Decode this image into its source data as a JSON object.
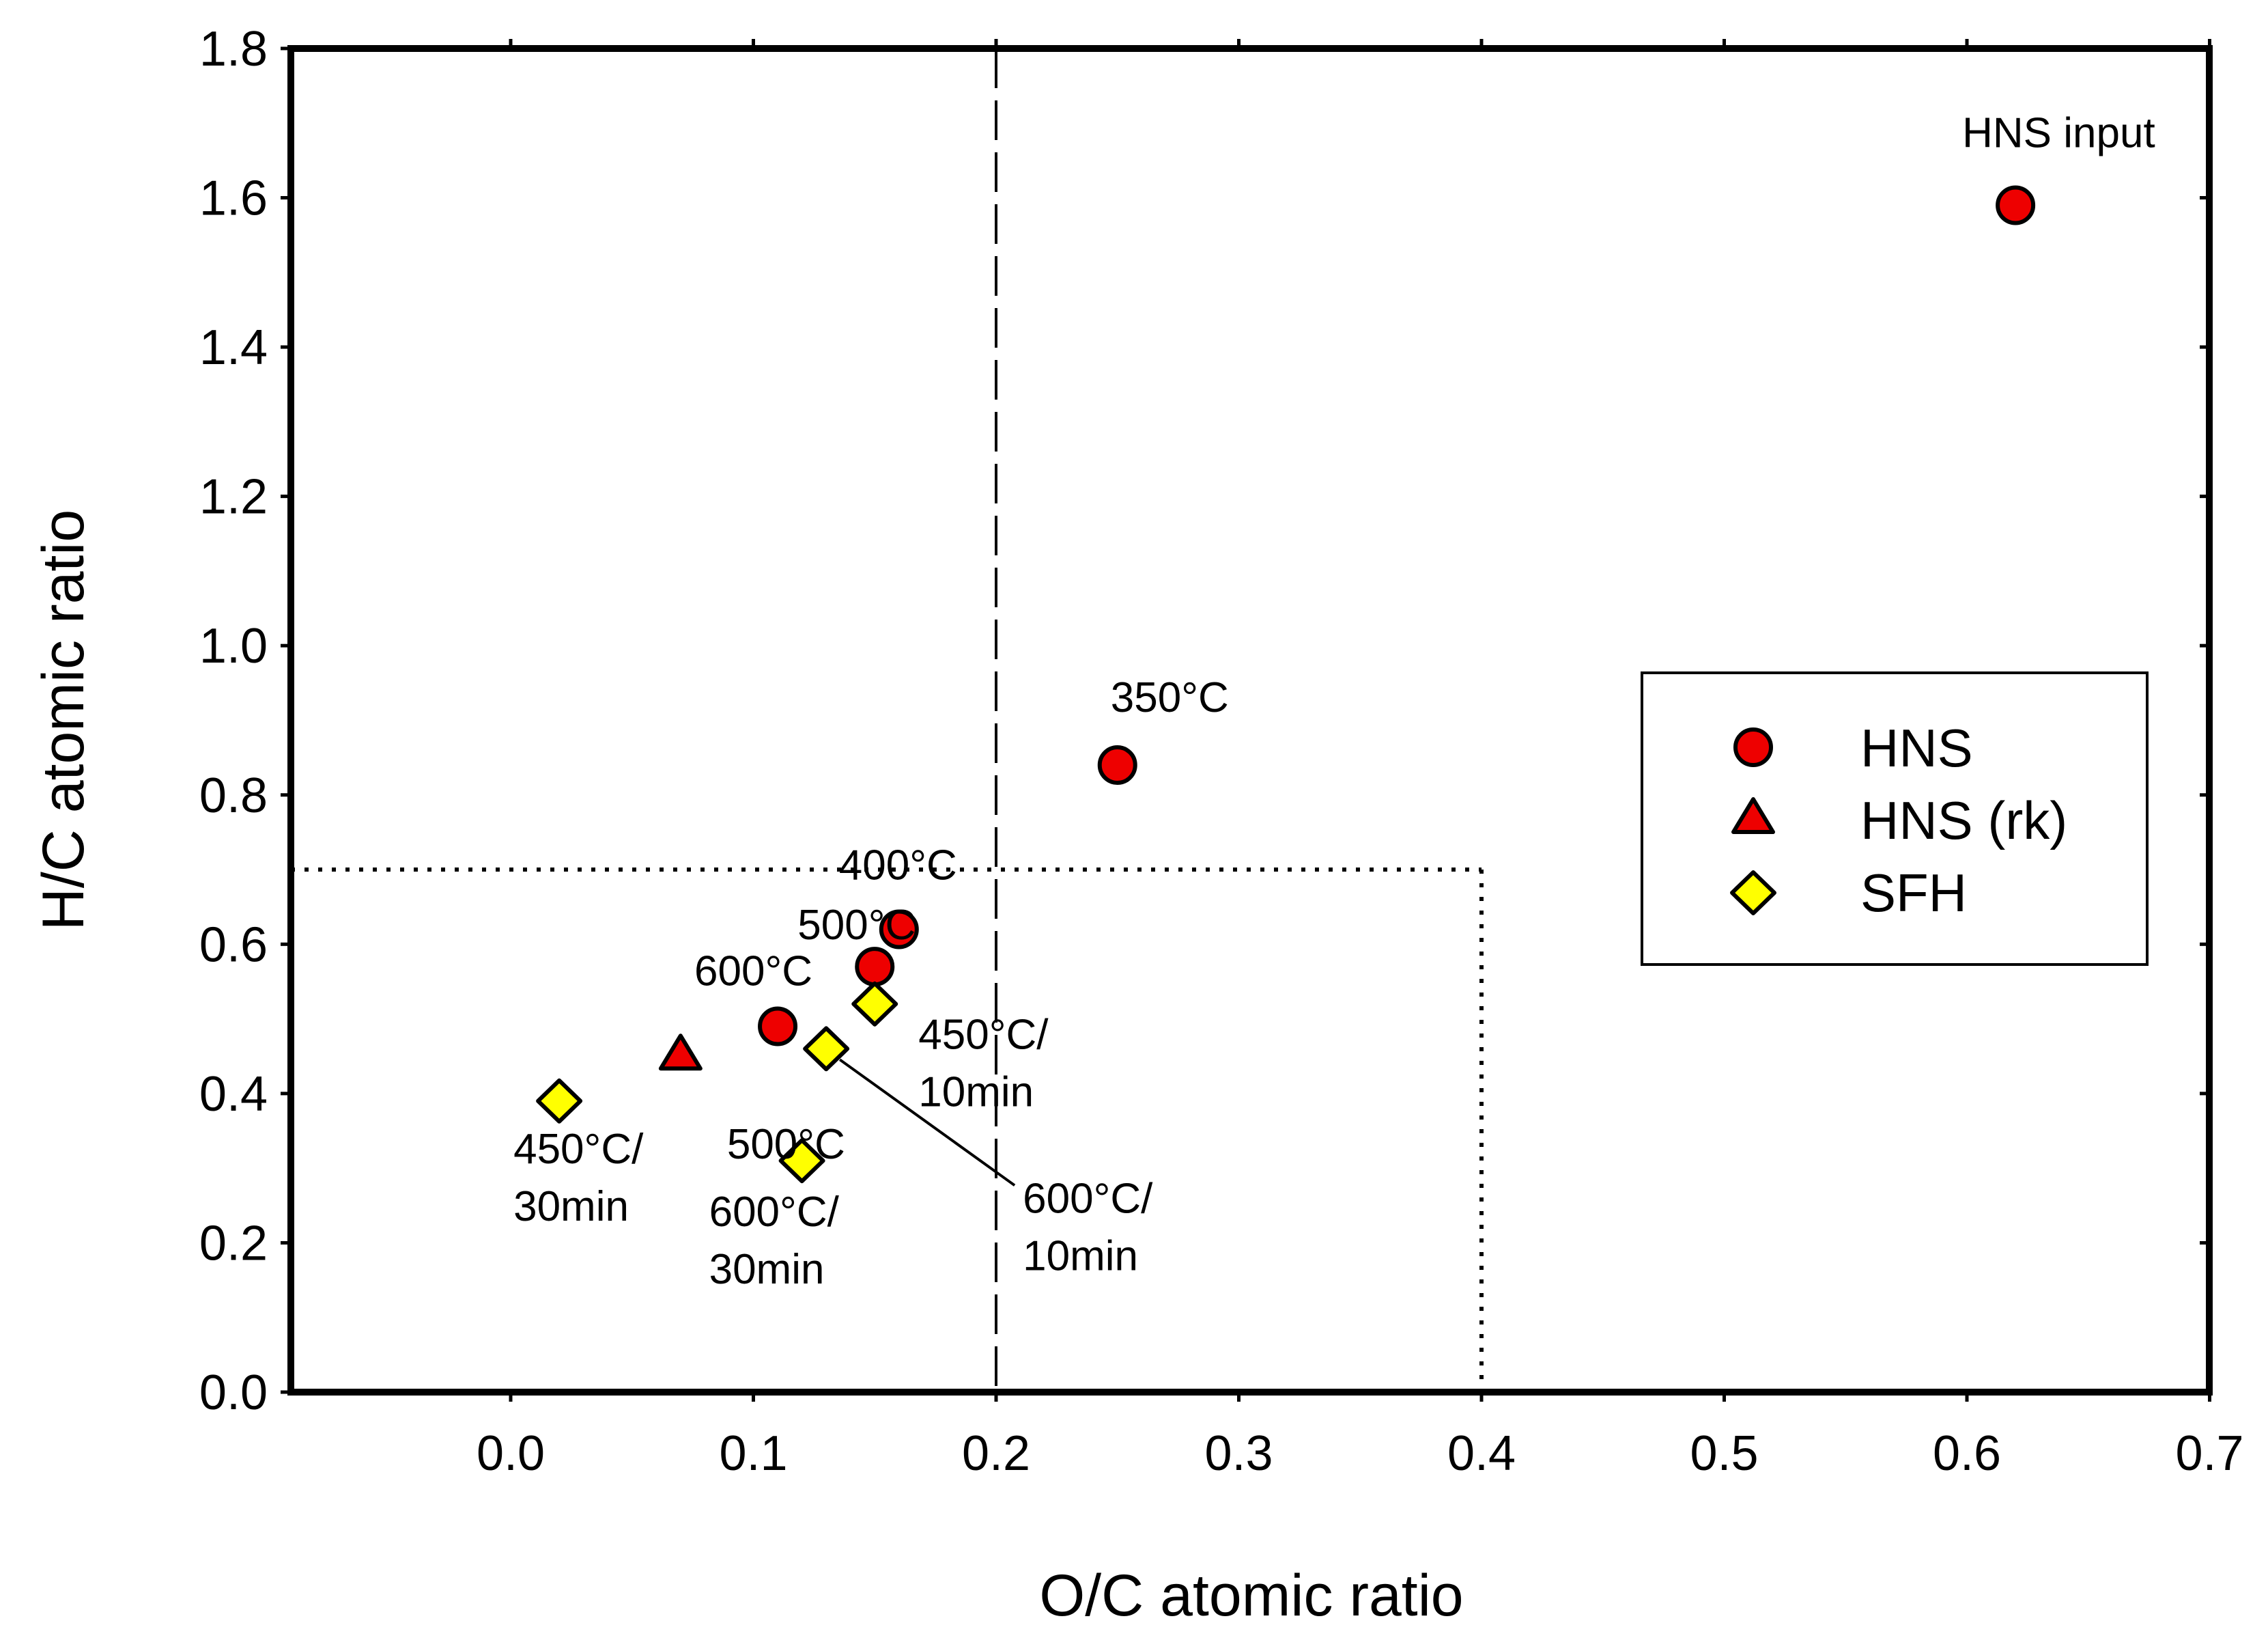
{
  "chart_data": {
    "type": "scatter",
    "xlabel": "O/C atomic ratio",
    "ylabel": "H/C atomic ratio",
    "xlim": [
      -0.09,
      0.7
    ],
    "ylim": [
      0.0,
      1.8
    ],
    "xticks": [
      "0.0",
      "0.1",
      "0.2",
      "0.3",
      "0.4",
      "0.5",
      "0.6",
      "0.7"
    ],
    "yticks": [
      "0.0",
      "0.2",
      "0.4",
      "0.6",
      "0.8",
      "1.0",
      "1.2",
      "1.4",
      "1.6",
      "1.8"
    ],
    "grid": false,
    "legend_position": "right-middle",
    "series": [
      {
        "name": "HNS",
        "marker": "circle",
        "color": "#ee0000",
        "points": [
          {
            "x": 0.62,
            "y": 1.59,
            "label": "HNS input"
          },
          {
            "x": 0.25,
            "y": 0.84,
            "label": "350°C"
          },
          {
            "x": 0.16,
            "y": 0.62,
            "label": "400°C"
          },
          {
            "x": 0.15,
            "y": 0.57,
            "label": "500°C"
          },
          {
            "x": 0.11,
            "y": 0.49,
            "label": "600°C"
          }
        ]
      },
      {
        "name": "HNS (rk)",
        "marker": "triangle",
        "color": "#ee0000",
        "points": [
          {
            "x": 0.07,
            "y": 0.45,
            "label": "500°C"
          }
        ]
      },
      {
        "name": "SFH",
        "marker": "diamond",
        "color": "#ffff00",
        "points": [
          {
            "x": 0.15,
            "y": 0.52,
            "label": [
              "450°C/",
              "10min"
            ]
          },
          {
            "x": 0.13,
            "y": 0.46,
            "label": [
              "600°C/",
              "10min"
            ]
          },
          {
            "x": 0.02,
            "y": 0.39,
            "label": [
              "450°C/",
              "30min"
            ]
          },
          {
            "x": 0.12,
            "y": 0.31,
            "label": [
              "600°C/",
              "30min"
            ]
          }
        ]
      }
    ],
    "reference_lines": [
      {
        "style": "dashed",
        "orientation": "vertical",
        "x": 0.2
      },
      {
        "style": "dotted",
        "orientation": "horizontal",
        "y": 0.7,
        "x_end": 0.4
      },
      {
        "style": "dotted",
        "orientation": "vertical",
        "x": 0.4,
        "y_end": 0.7
      }
    ]
  }
}
